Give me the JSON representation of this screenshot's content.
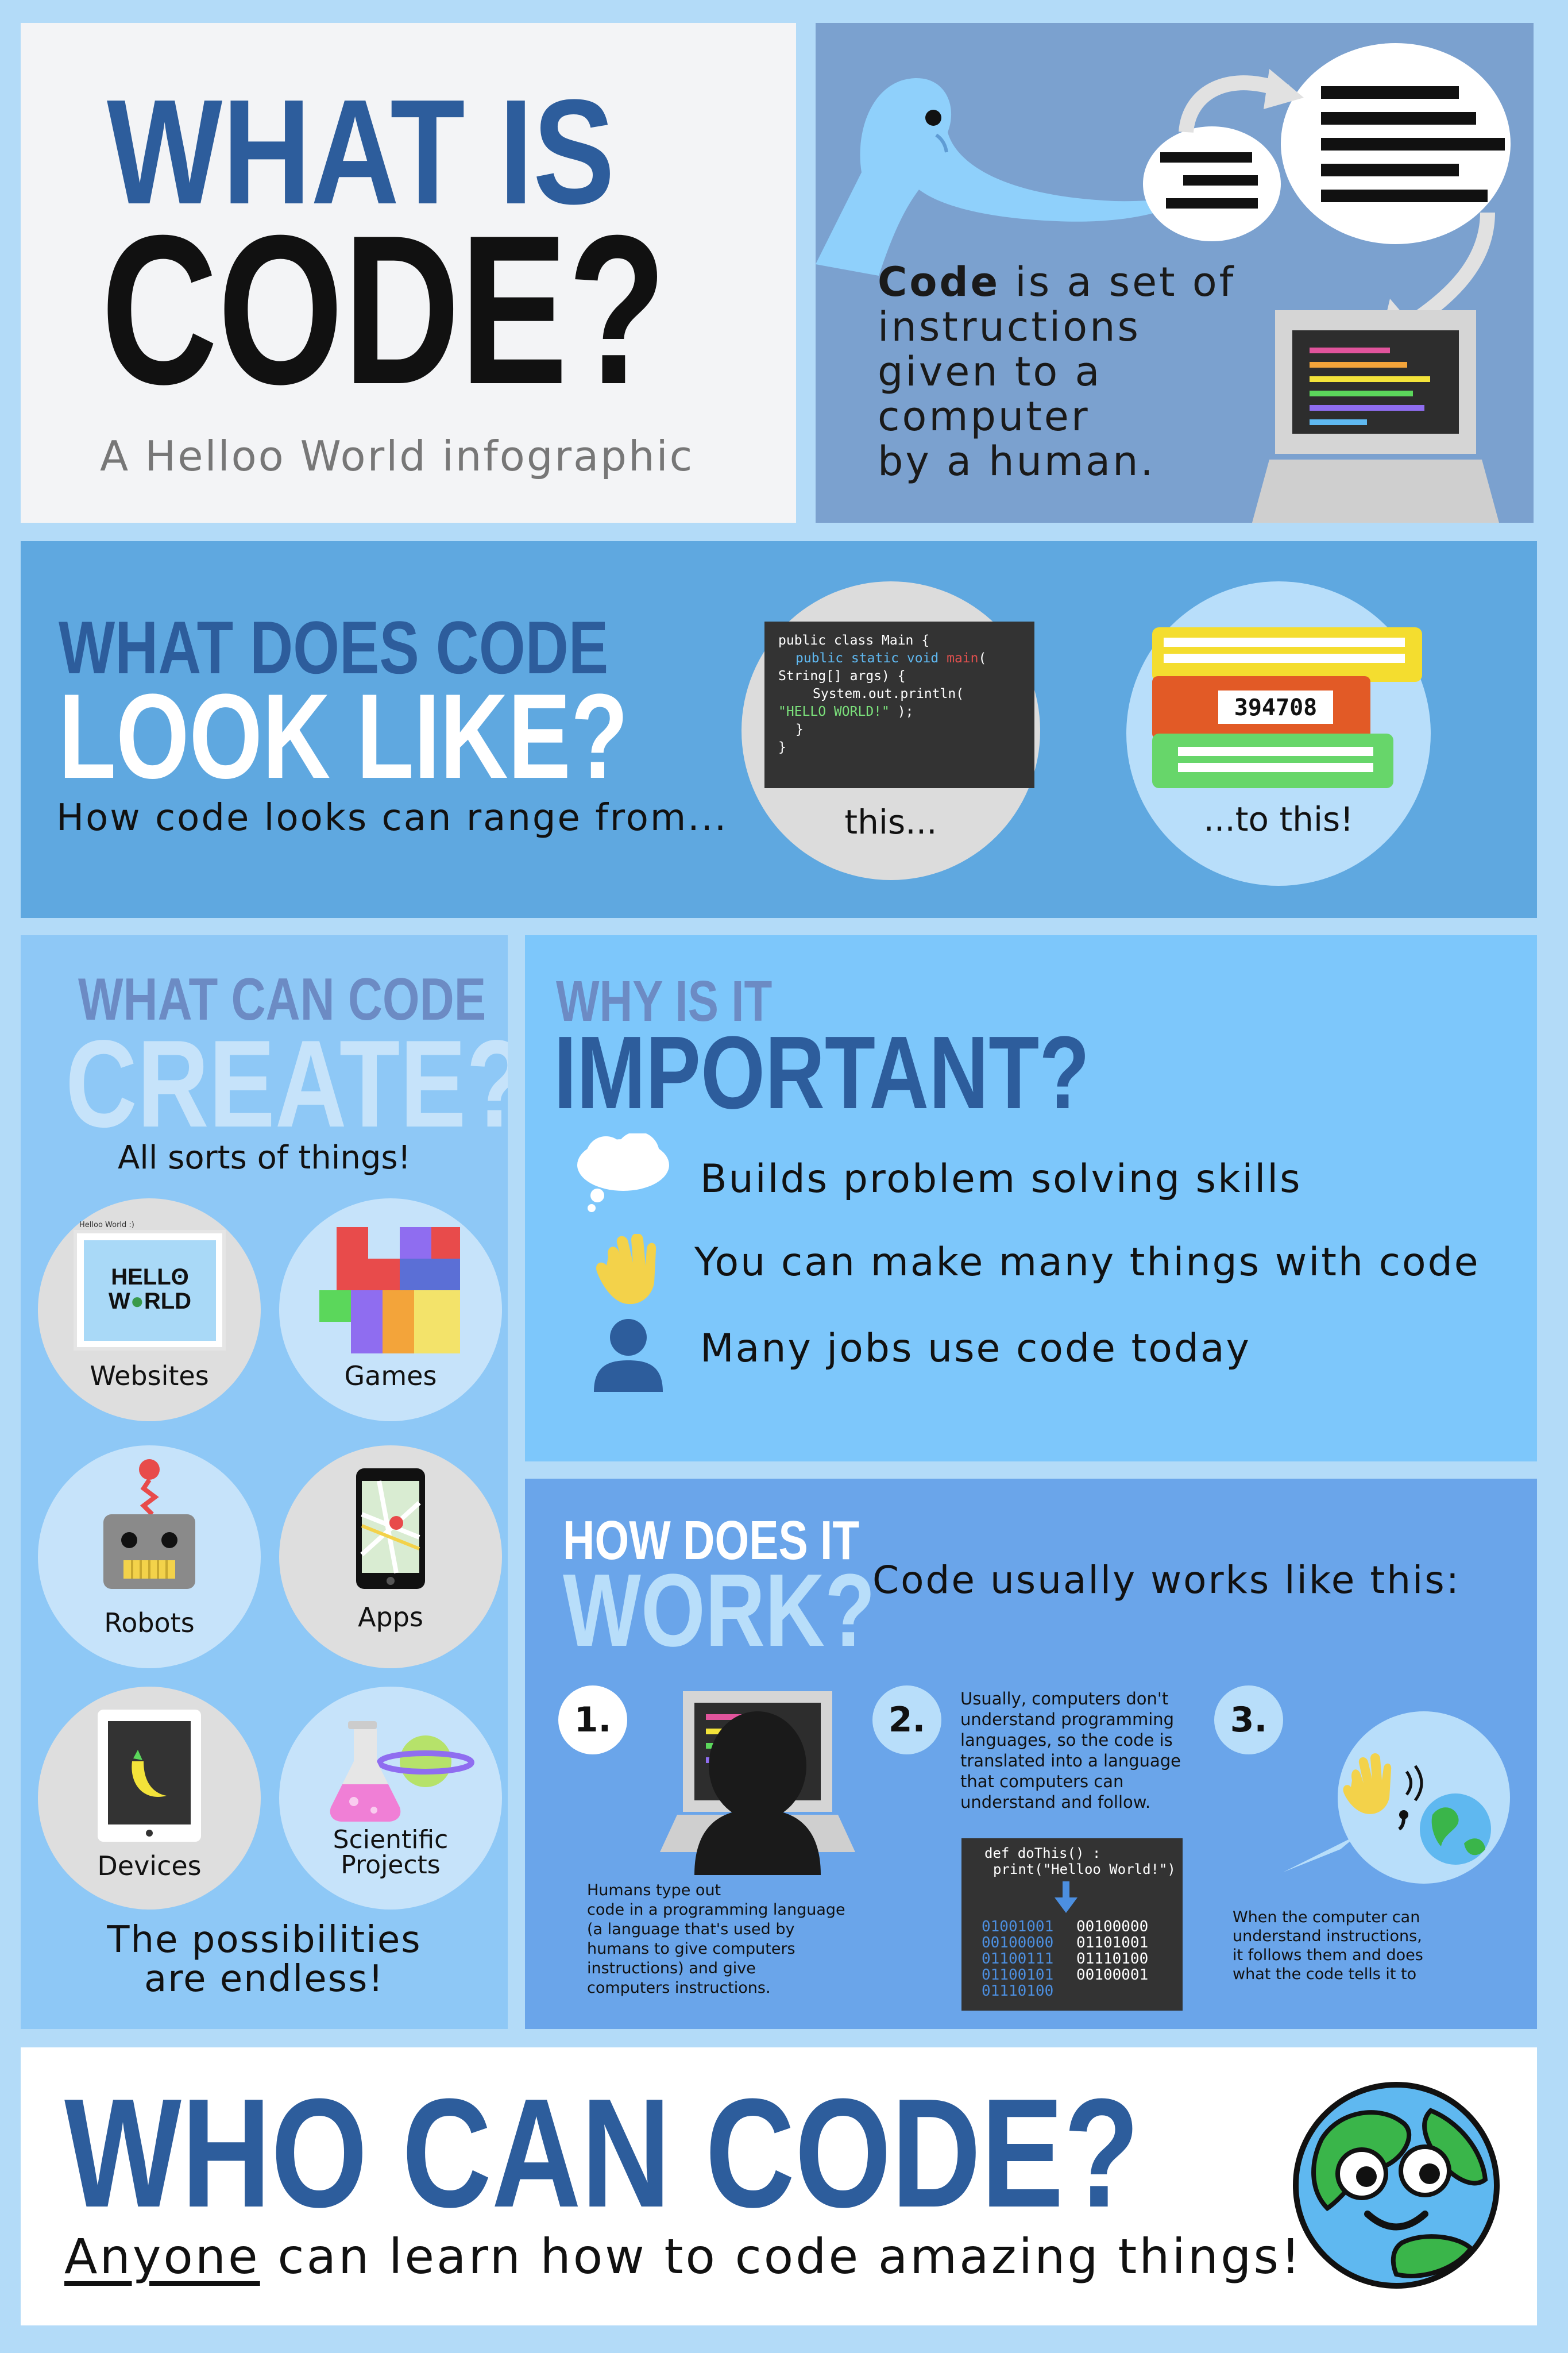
{
  "header": {
    "title_line1": "WHAT IS",
    "title_line2": "CODE?",
    "subtitle": "A Helloo World infographic",
    "definition_bold": "Code",
    "definition_rest_1": " is a set of",
    "definition_line2": "instructions",
    "definition_line3": "given to a",
    "definition_line4": "computer",
    "definition_line5": "by a human."
  },
  "look_like": {
    "title_line1": "WHAT DOES CODE",
    "title_line2": "LOOK LIKE?",
    "subtitle": "How code looks can range from...",
    "code_lines": {
      "l1": "public class Main {",
      "l2a": "public static void ",
      "l2b": "main",
      "l2c": "(",
      "l3": "String[] args) {",
      "l4": "System.out.println(",
      "l5a": "\"HELLO WORLD!\"",
      "l5b": " );",
      "l6": "}",
      "l7": "}"
    },
    "caption_this": "this...",
    "block_number": "394708",
    "caption_to_this": "...to this!"
  },
  "create": {
    "title_line1": "WHAT CAN CODE",
    "title_line2": "CREATE?",
    "subtitle": "All sorts of things!",
    "website_tab": "Helloo World :)",
    "website_logo_1": "HELL",
    "website_logo_2": "W",
    "website_logo_3": "RLD",
    "items": [
      {
        "label": "Websites"
      },
      {
        "label": "Games"
      },
      {
        "label": "Robots"
      },
      {
        "label": "Apps"
      },
      {
        "label": "Devices"
      },
      {
        "label": "Scientific Projects"
      }
    ],
    "footer_line1": "The possibilities",
    "footer_line2": "are endless!"
  },
  "important": {
    "title_line1": "WHY IS IT",
    "title_line2": "IMPORTANT?",
    "reasons": [
      {
        "text": "Builds problem solving skills",
        "icon": "cloud-icon"
      },
      {
        "text": "You can make many things with code",
        "icon": "waving-hand-icon"
      },
      {
        "text": "Many jobs use code today",
        "icon": "person-icon"
      }
    ]
  },
  "how": {
    "title_line1": "HOW DOES IT",
    "title_line2": "WORK?",
    "intro": "Code usually works like this:",
    "steps": [
      {
        "number": "1.",
        "text_lines": [
          "Humans type out",
          "code in a programming language",
          "(a language that's used by",
          "humans to give computers",
          "instructions) and give",
          "computers instructions."
        ]
      },
      {
        "number": "2.",
        "text_lines": [
          "Usually, computers don't",
          "understand programming",
          "languages, so the code is",
          "translated into a language",
          "that computers can",
          "understand and follow."
        ]
      },
      {
        "number": "3.",
        "text_lines": [
          "When the computer can",
          "understand instructions,",
          "it follows them and does",
          "what the code tells it to"
        ]
      }
    ],
    "code_line1": "def doThis() :",
    "code_line2": "print(\"Helloo World!\")",
    "binary_col1": [
      "01001001",
      "00100000",
      "01100111",
      "01100101",
      "01110100"
    ],
    "binary_col2": [
      "00100000",
      "01101001",
      "01110100",
      "00100001"
    ]
  },
  "who": {
    "title": "WHO CAN CODE?",
    "anyone": "Anyone",
    "rest": " can learn how to code amazing things!"
  },
  "colors": {
    "page_bg": "#b3dbf8",
    "dark_blue": "#2d5d9c",
    "mid_blue": "#5fa8e0",
    "light_blue": "#7dc7fb",
    "slate_blue": "#7ba1cf",
    "white_panel": "#f3f4f6"
  }
}
